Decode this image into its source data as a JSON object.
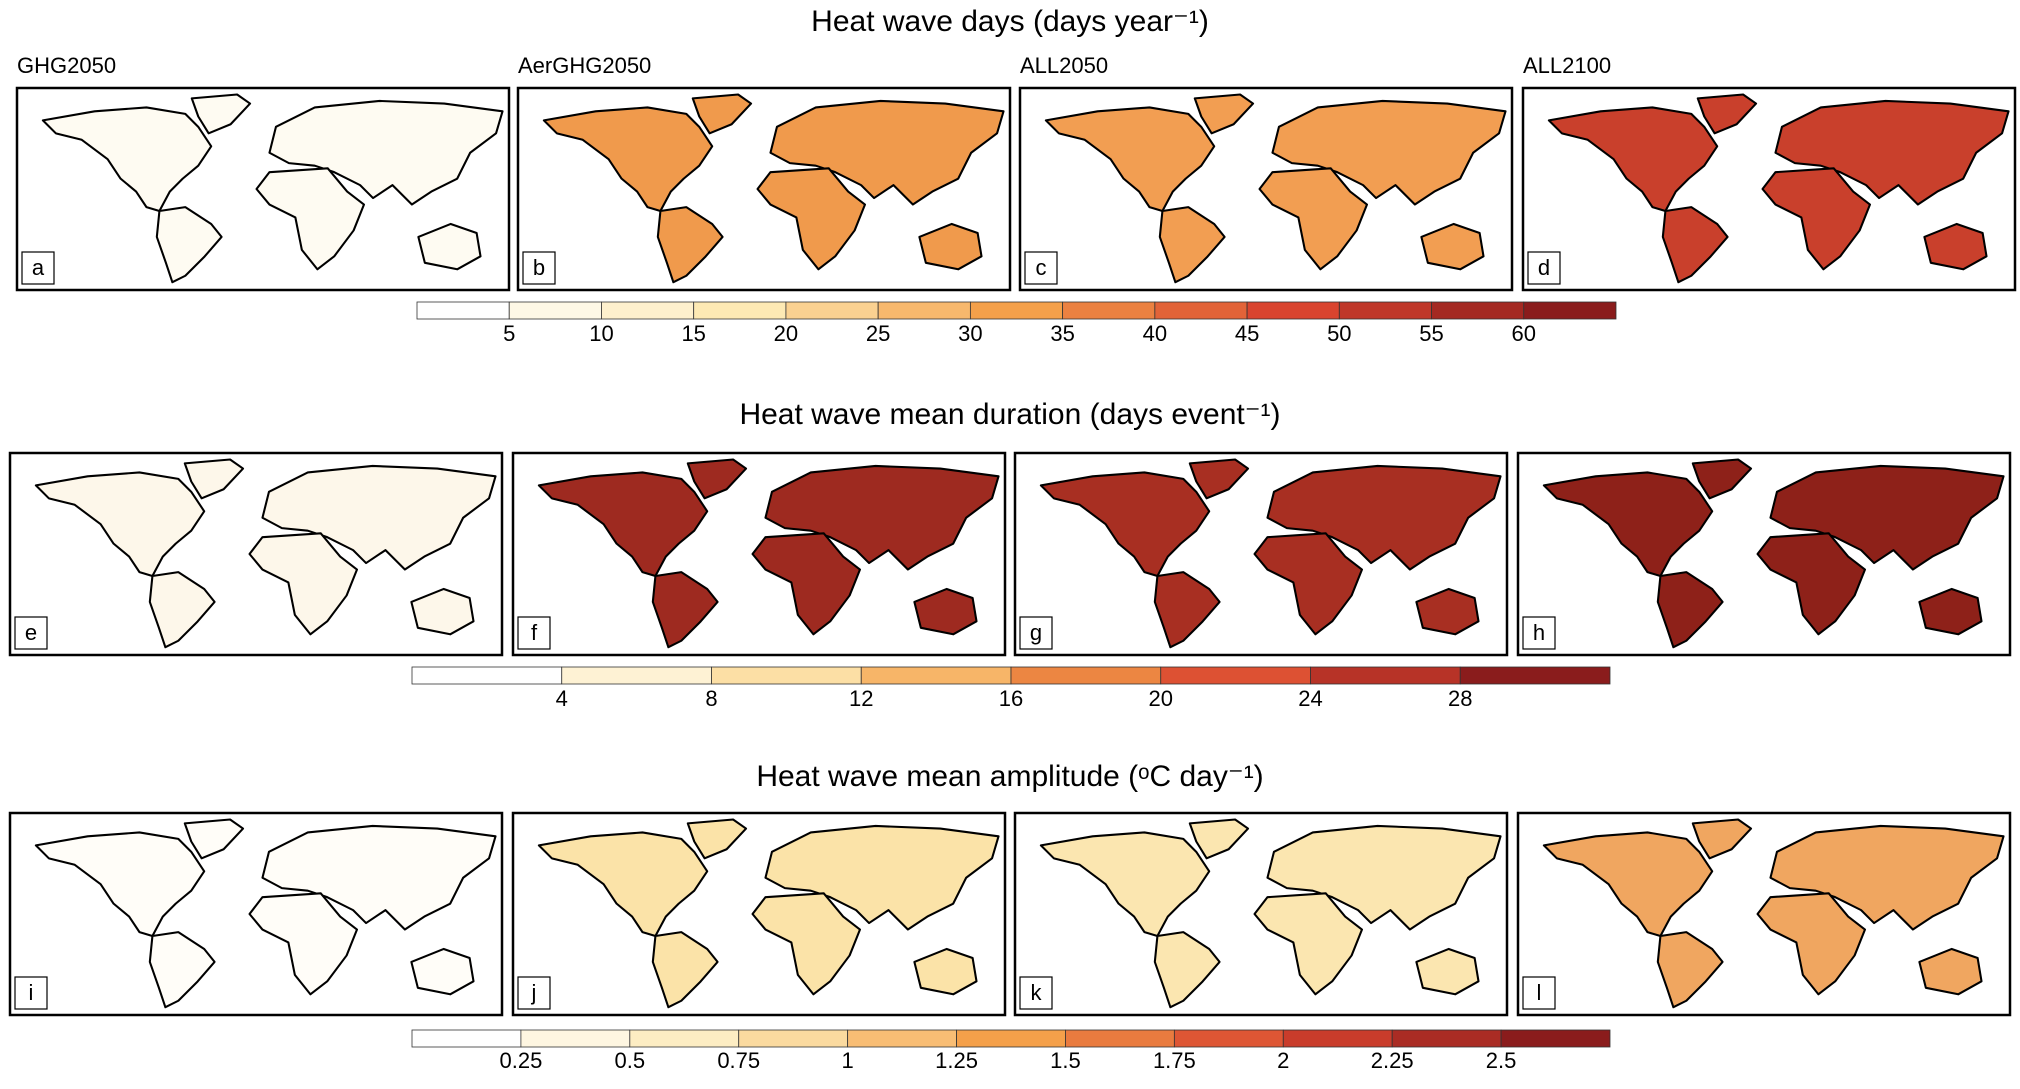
{
  "rows": [
    {
      "title": "Heat wave days (days year⁻¹)",
      "columns": [
        "GHG2050",
        "AerGHG2050",
        "ALL2050",
        "ALL2100"
      ],
      "panels": [
        "a",
        "b",
        "c",
        "d"
      ],
      "colorbar_ticks": [
        "5",
        "10",
        "15",
        "20",
        "25",
        "30",
        "35",
        "40",
        "45",
        "50",
        "55",
        "60"
      ]
    },
    {
      "title": "Heat wave mean duration (days event⁻¹)",
      "panels": [
        "e",
        "f",
        "g",
        "h"
      ],
      "colorbar_ticks": [
        "4",
        "8",
        "12",
        "16",
        "20",
        "24",
        "28"
      ]
    },
    {
      "title": "Heat wave mean amplitude (ᵒC day⁻¹)",
      "panels": [
        "i",
        "j",
        "k",
        "l"
      ],
      "colorbar_ticks": [
        "0.25",
        "0.5",
        "0.75",
        "1",
        "1.25",
        "1.5",
        "1.75",
        "2",
        "2.25",
        "2.5"
      ]
    }
  ]
}
